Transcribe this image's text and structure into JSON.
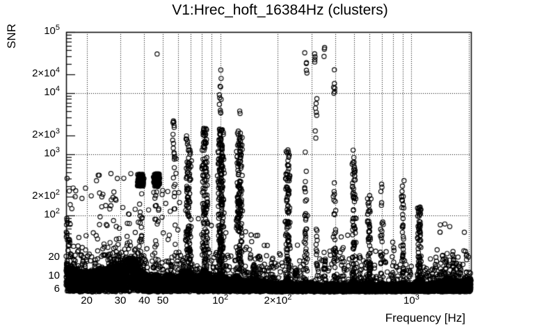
{
  "chart_data": {
    "type": "scatter",
    "title": "V1:Hrec_hoft_16384Hz (clusters)",
    "xlabel": "Frequency [Hz]",
    "ylabel": "SNR",
    "x_scale": "log",
    "y_scale": "log",
    "xlim": [
      15.6,
      2048
    ],
    "ylim": [
      5.6,
      100000
    ],
    "grid_style": "dotted",
    "marker": {
      "shape": "open-circle",
      "radius_px": 3.1,
      "color": "#000000"
    },
    "axis_color": "#000000",
    "background": "#ffffff",
    "x_ticks": [
      {
        "v": 20,
        "t": "20",
        "s": ""
      },
      {
        "v": 30,
        "t": "30",
        "s": ""
      },
      {
        "v": 40,
        "t": "40",
        "s": ""
      },
      {
        "v": 50,
        "t": "50",
        "s": ""
      },
      {
        "v": 100,
        "t": "10",
        "s": "2"
      },
      {
        "v": 200,
        "t": "2×10",
        "s": "2"
      },
      {
        "v": 1000,
        "t": "10",
        "s": "3"
      }
    ],
    "y_ticks": [
      {
        "v": 6,
        "t": "6",
        "s": ""
      },
      {
        "v": 10,
        "t": "10",
        "s": ""
      },
      {
        "v": 20,
        "t": "20",
        "s": ""
      },
      {
        "v": 100,
        "t": "10",
        "s": "2"
      },
      {
        "v": 200,
        "t": "2×10",
        "s": "2"
      },
      {
        "v": 1000,
        "t": "10",
        "s": "3"
      },
      {
        "v": 2000,
        "t": "2×10",
        "s": "3"
      },
      {
        "v": 10000,
        "t": "10",
        "s": "4"
      },
      {
        "v": 20000,
        "t": "2×10",
        "s": "4"
      },
      {
        "v": 100000,
        "t": "10",
        "s": "5"
      }
    ],
    "x_grid_decades": [
      20,
      30,
      40,
      50,
      60,
      70,
      80,
      90,
      100,
      200,
      300,
      400,
      500,
      600,
      700,
      800,
      900,
      1000,
      2000
    ],
    "y_grid_decades": [
      10,
      100,
      1000,
      10000
    ],
    "noise_floor": {
      "n_points": 9500,
      "snr_min": 5.6,
      "halo_n": 650,
      "envelope": [
        [
          15.6,
          16
        ],
        [
          17,
          13
        ],
        [
          20,
          12
        ],
        [
          24,
          13
        ],
        [
          28,
          15.5
        ],
        [
          32,
          18.5
        ],
        [
          35,
          19.5
        ],
        [
          37.5,
          17
        ],
        [
          39,
          12
        ],
        [
          42,
          10
        ],
        [
          46,
          10.5
        ],
        [
          49,
          9.5
        ],
        [
          54,
          10.5
        ],
        [
          58,
          10
        ],
        [
          63,
          11
        ],
        [
          68,
          13
        ],
        [
          72,
          10.5
        ],
        [
          78,
          10.5
        ],
        [
          83,
          13
        ],
        [
          88,
          10
        ],
        [
          95,
          10
        ],
        [
          101,
          11
        ],
        [
          108,
          8.8
        ],
        [
          115,
          9
        ],
        [
          122,
          10.5
        ],
        [
          130,
          8.5
        ],
        [
          140,
          8.6
        ],
        [
          152,
          9.2
        ],
        [
          165,
          8.2
        ],
        [
          180,
          8.0
        ],
        [
          200,
          7.6
        ],
        [
          215,
          7.6
        ],
        [
          226,
          9.0
        ],
        [
          240,
          7.4
        ],
        [
          265,
          7.5
        ],
        [
          283,
          8.2
        ],
        [
          310,
          7.4
        ],
        [
          350,
          7.3
        ],
        [
          400,
          7.6
        ],
        [
          440,
          7.3
        ],
        [
          470,
          7.4
        ],
        [
          500,
          8.6
        ],
        [
          530,
          7.5
        ],
        [
          560,
          7.4
        ],
        [
          600,
          8.2
        ],
        [
          650,
          7.3
        ],
        [
          700,
          7.8
        ],
        [
          760,
          7.3
        ],
        [
          830,
          7.4
        ],
        [
          900,
          8.0
        ],
        [
          960,
          7.3
        ],
        [
          1030,
          7.5
        ],
        [
          1100,
          9.0
        ],
        [
          1180,
          7.4
        ],
        [
          1280,
          7.6
        ],
        [
          1400,
          8.4
        ],
        [
          1520,
          8.8
        ],
        [
          1650,
          8.4
        ],
        [
          1800,
          8.2
        ],
        [
          1950,
          8.6
        ],
        [
          2048,
          9.0
        ]
      ]
    },
    "clusters": [
      {
        "f": 38.3,
        "snr": [
          300,
          470
        ],
        "n": 170,
        "w": 5.0
      },
      {
        "f": 38.3,
        "snr": [
          25,
          300
        ],
        "n": 12,
        "w": 3.0
      },
      {
        "f": 46.4,
        "snr": [
          300,
          480
        ],
        "n": 170,
        "w": 5.0
      },
      {
        "f": 46.4,
        "snr": [
          18,
          300
        ],
        "n": 14,
        "w": 3.0
      },
      {
        "f": 46.4,
        "snr": [
          42000,
          44000
        ],
        "n": 1,
        "w": 1.0
      },
      {
        "f": 57.5,
        "snr": [
          28,
          6300
        ],
        "n": 26,
        "w": 2.6
      },
      {
        "f": 68,
        "snr": [
          6.5,
          2100
        ],
        "n": 120,
        "w": 4.6
      },
      {
        "f": 83,
        "snr": [
          6.5,
          2700
        ],
        "n": 140,
        "w": 4.6
      },
      {
        "f": 100.5,
        "snr": [
          6.5,
          2600
        ],
        "n": 210,
        "w": 5.2
      },
      {
        "f": 100.5,
        "snr": [
          2600,
          25000
        ],
        "n": 11,
        "w": 2.2
      },
      {
        "f": 126,
        "snr": [
          6.5,
          2400
        ],
        "n": 160,
        "w": 4.8
      },
      {
        "f": 126,
        "snr": [
          4500,
          5200
        ],
        "n": 2,
        "w": 1.5
      },
      {
        "f": 150,
        "snr": [
          6,
          16
        ],
        "n": 30,
        "w": 3.5
      },
      {
        "f": 160,
        "snr": [
          6,
          22
        ],
        "n": 14,
        "w": 2.5
      },
      {
        "f": 225,
        "snr": [
          6.5,
          1250
        ],
        "n": 95,
        "w": 3.8
      },
      {
        "f": 248,
        "snr": [
          6.5,
          14
        ],
        "n": 18,
        "w": 2.6
      },
      {
        "f": 280,
        "snr": [
          16,
          540
        ],
        "n": 28,
        "w": 2.6
      },
      {
        "f": 280,
        "snr": [
          1000,
          1150
        ],
        "n": 1,
        "w": 1.0
      },
      {
        "f": 281,
        "snr": [
          20000,
          48000
        ],
        "n": 5,
        "w": 2.2
      },
      {
        "f": 312,
        "snr": [
          29000,
          45000
        ],
        "n": 4,
        "w": 2.0
      },
      {
        "f": 318,
        "snr": [
          1700,
          8200
        ],
        "n": 7,
        "w": 2.2
      },
      {
        "f": 318,
        "snr": [
          7,
          70
        ],
        "n": 14,
        "w": 2.4
      },
      {
        "f": 352,
        "snr": [
          34000,
          58000
        ],
        "n": 3,
        "w": 1.8
      },
      {
        "f": 352,
        "snr": [
          7,
          30
        ],
        "n": 12,
        "w": 2.4
      },
      {
        "f": 395,
        "snr": [
          8800,
          15500
        ],
        "n": 5,
        "w": 2.0
      },
      {
        "f": 396,
        "snr": [
          23500,
          25500
        ],
        "n": 1,
        "w": 1.0
      },
      {
        "f": 397,
        "snr": [
          85,
          460
        ],
        "n": 9,
        "w": 2.2
      },
      {
        "f": 397,
        "snr": [
          6.5,
          60
        ],
        "n": 22,
        "w": 2.6
      },
      {
        "f": 435,
        "snr": [
          15,
          35
        ],
        "n": 6,
        "w": 2.0
      },
      {
        "f": 500,
        "snr": [
          6.5,
          1300
        ],
        "n": 75,
        "w": 3.6
      },
      {
        "f": 540,
        "snr": [
          8,
          25
        ],
        "n": 10,
        "w": 2.2
      },
      {
        "f": 600,
        "snr": [
          6.5,
          215
        ],
        "n": 55,
        "w": 3.4
      },
      {
        "f": 700,
        "snr": [
          9,
          360
        ],
        "n": 20,
        "w": 2.4
      },
      {
        "f": 800,
        "snr": [
          8,
          30
        ],
        "n": 8,
        "w": 2.2
      },
      {
        "f": 900,
        "snr": [
          8.5,
          370
        ],
        "n": 42,
        "w": 2.8
      },
      {
        "f": 1100,
        "snr": [
          6.2,
          140
        ],
        "n": 85,
        "w": 3.4
      },
      {
        "f": 1430,
        "snr": [
          52,
          80
        ],
        "n": 3,
        "w": 2.0
      },
      {
        "f": 1500,
        "snr": [
          8,
          22
        ],
        "n": 12,
        "w": 2.4
      },
      {
        "f": 1650,
        "snr": [
          8,
          20
        ],
        "n": 10,
        "w": 2.4
      }
    ],
    "sparse_regions": [
      {
        "f": [
          15.6,
          16.4
        ],
        "snr": [
          30,
          1500
        ],
        "n": 16,
        "pow": 1.5
      },
      {
        "f": [
          15.6,
          40
        ],
        "snr": [
          18,
          500
        ],
        "n": 90,
        "pow": 1.7
      },
      {
        "f": [
          40,
          75
        ],
        "snr": [
          14,
          260
        ],
        "n": 34,
        "pow": 1.7
      },
      {
        "f": [
          75,
          130
        ],
        "snr": [
          12,
          90
        ],
        "n": 20,
        "pow": 1.5
      },
      {
        "f": [
          130,
          210
        ],
        "snr": [
          9,
          60
        ],
        "n": 26,
        "pow": 1.6
      },
      {
        "f": [
          210,
          1024
        ],
        "snr": [
          12,
          55
        ],
        "n": 30,
        "pow": 1.6
      },
      {
        "f": [
          1300,
          2048
        ],
        "snr": [
          8.5,
          26
        ],
        "n": 50,
        "pow": 1.5
      },
      {
        "f": [
          1350,
          2048
        ],
        "snr": [
          26,
          85
        ],
        "n": 5,
        "pow": 1.2
      }
    ]
  }
}
